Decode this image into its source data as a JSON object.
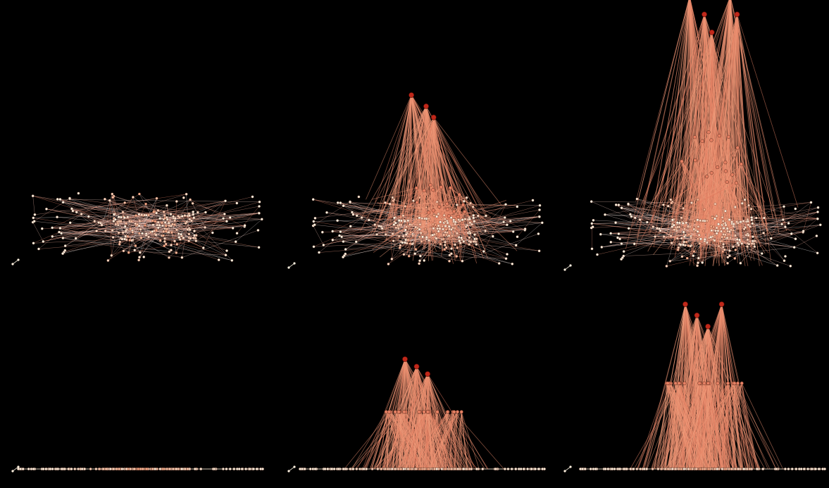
{
  "figure": {
    "background": "#000000",
    "layout": {
      "rows": 2,
      "cols": 3
    },
    "palette": {
      "low": "#fff2e0",
      "mid": "#f4a582",
      "high": "#c0281a",
      "edge": "#f08060",
      "node_outline": "#3a1208"
    },
    "panels": [
      {
        "id": "top-left",
        "view": "perspective",
        "height_scale": 0.0,
        "seed": 11,
        "peaks": 0
      },
      {
        "id": "top-middle",
        "view": "perspective",
        "height_scale": 0.5,
        "seed": 11,
        "peaks": 3
      },
      {
        "id": "top-right",
        "view": "perspective",
        "height_scale": 1.0,
        "seed": 11,
        "peaks": 5
      },
      {
        "id": "bottom-left",
        "view": "side",
        "height_scale": 0.0,
        "seed": 23,
        "peaks": 0
      },
      {
        "id": "bottom-middle",
        "view": "side",
        "height_scale": 0.5,
        "seed": 23,
        "peaks": 3
      },
      {
        "id": "bottom-right",
        "view": "side",
        "height_scale": 1.0,
        "seed": 23,
        "peaks": 4
      }
    ]
  }
}
